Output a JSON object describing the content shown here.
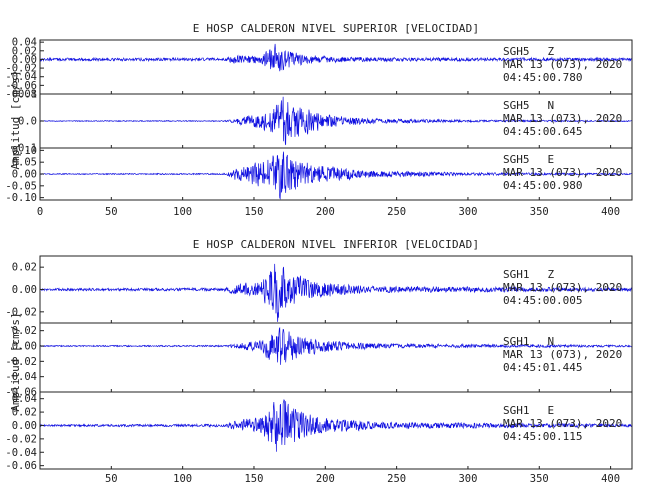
{
  "colors": {
    "trace": "#1010e0",
    "axis": "#222222",
    "background": "#ffffff"
  },
  "chart_data": [
    {
      "type": "line",
      "title": "E HOSP CALDERON NIVEL SUPERIOR [VELOCIDAD]",
      "ylabel": "Amplitud [cm/s]",
      "xlabel": "",
      "xlim": [
        0,
        415
      ],
      "xticks": [
        0,
        50,
        100,
        150,
        200,
        250,
        300,
        350,
        400
      ],
      "show_x_tick_labels": true,
      "grid": false,
      "traces": [
        {
          "station": "SGH5",
          "component": "Z",
          "date": "MAR 13 (073), 2020",
          "start_time": "04:45:00.780",
          "ylim": [
            -0.08,
            0.045
          ],
          "yticks": [
            -0.08,
            -0.06,
            -0.04,
            -0.02,
            0.0,
            0.02,
            0.04
          ],
          "ytick_labels": [
            "-0.08",
            "-0.06",
            "-0.04",
            "-0.02",
            "0.00",
            "0.02",
            "0.04"
          ],
          "envelope_points": [
            [
              0,
              0.0032
            ],
            [
              130,
              0.0035
            ],
            [
              136,
              0.009
            ],
            [
              155,
              0.011
            ],
            [
              162,
              0.03
            ],
            [
              165,
              0.04
            ],
            [
              170,
              0.025
            ],
            [
              185,
              0.012
            ],
            [
              210,
              0.006
            ],
            [
              260,
              0.0042
            ],
            [
              415,
              0.0036
            ]
          ],
          "drift": 0.0
        },
        {
          "station": "SGH5",
          "component": "N",
          "date": "MAR 13 (073), 2020",
          "start_time": "04:45:00.645",
          "ylim": [
            -0.1,
            0.1
          ],
          "yticks": [
            -0.1,
            0.0,
            0.1
          ],
          "ytick_labels": [
            "-0.1",
            "0.0",
            "0.1"
          ],
          "envelope_points": [
            [
              0,
              0.0015
            ],
            [
              130,
              0.002
            ],
            [
              140,
              0.014
            ],
            [
              155,
              0.028
            ],
            [
              165,
              0.06
            ],
            [
              172,
              0.1
            ],
            [
              180,
              0.07
            ],
            [
              200,
              0.025
            ],
            [
              230,
              0.01
            ],
            [
              300,
              0.004
            ],
            [
              415,
              0.002
            ]
          ],
          "drift": 0.0
        },
        {
          "station": "SGH5",
          "component": "E",
          "date": "MAR 13 (073), 2020",
          "start_time": "04:45:00.980",
          "ylim": [
            -0.11,
            0.11
          ],
          "yticks": [
            -0.1,
            -0.05,
            0.0,
            0.05,
            0.1
          ],
          "ytick_labels": [
            "-0.10",
            "-0.05",
            "0.00",
            "0.05",
            "0.10"
          ],
          "envelope_points": [
            [
              0,
              0.002
            ],
            [
              130,
              0.003
            ],
            [
              138,
              0.03
            ],
            [
              152,
              0.05
            ],
            [
              162,
              0.08
            ],
            [
              168,
              0.1
            ],
            [
              180,
              0.065
            ],
            [
              200,
              0.035
            ],
            [
              230,
              0.015
            ],
            [
              300,
              0.006
            ],
            [
              415,
              0.003
            ]
          ],
          "drift": 0.0
        }
      ]
    },
    {
      "type": "line",
      "title": "E HOSP CALDERON NIVEL INFERIOR [VELOCIDAD]",
      "ylabel": "Amplitud [cm/s]",
      "xlabel": "",
      "xlim": [
        0,
        415
      ],
      "xticks": [
        50,
        100,
        150,
        200,
        250,
        300,
        350,
        400
      ],
      "show_x_tick_labels": true,
      "grid": false,
      "traces": [
        {
          "station": "SGH1",
          "component": "Z",
          "date": "MAR 13 (073), 2020",
          "start_time": "04:45:00.005",
          "ylim": [
            -0.03,
            0.03
          ],
          "yticks": [
            -0.02,
            0.0,
            0.02
          ],
          "ytick_labels": [
            "-0.02",
            "0.00",
            "0.02"
          ],
          "envelope_points": [
            [
              0,
              0.001
            ],
            [
              130,
              0.0014
            ],
            [
              136,
              0.005
            ],
            [
              155,
              0.007
            ],
            [
              162,
              0.02
            ],
            [
              166,
              0.03
            ],
            [
              172,
              0.018
            ],
            [
              190,
              0.008
            ],
            [
              230,
              0.003
            ],
            [
              415,
              0.0015
            ]
          ],
          "drift": 0.0
        },
        {
          "station": "SGH1",
          "component": "N",
          "date": "MAR 13 (073), 2020",
          "start_time": "04:45:01.445",
          "ylim": [
            -0.06,
            0.03
          ],
          "yticks": [
            -0.06,
            -0.04,
            -0.02,
            0.0,
            0.02
          ],
          "ytick_labels": [
            "-0.06",
            "-0.04",
            "-0.02",
            "0.00",
            "0.02"
          ],
          "envelope_points": [
            [
              0,
              0.0008
            ],
            [
              130,
              0.001
            ],
            [
              140,
              0.004
            ],
            [
              155,
              0.008
            ],
            [
              162,
              0.02
            ],
            [
              166,
              0.028
            ],
            [
              175,
              0.02
            ],
            [
              195,
              0.008
            ],
            [
              240,
              0.003
            ],
            [
              415,
              0.0012
            ]
          ],
          "drift": -0.001
        },
        {
          "station": "SGH1",
          "component": "E",
          "date": "MAR 13 (073), 2020",
          "start_time": "04:45:00.115",
          "ylim": [
            -0.065,
            0.05
          ],
          "yticks": [
            -0.06,
            -0.04,
            -0.02,
            0.0,
            0.02,
            0.04
          ],
          "ytick_labels": [
            "-0.06",
            "-0.04",
            "-0.02",
            "0.00",
            "0.02",
            "0.04"
          ],
          "envelope_points": [
            [
              0,
              0.0015
            ],
            [
              130,
              0.002
            ],
            [
              138,
              0.008
            ],
            [
              155,
              0.014
            ],
            [
              162,
              0.03
            ],
            [
              167,
              0.05
            ],
            [
              175,
              0.03
            ],
            [
              195,
              0.012
            ],
            [
              240,
              0.005
            ],
            [
              415,
              0.002
            ]
          ],
          "drift": 0.0
        }
      ]
    }
  ]
}
